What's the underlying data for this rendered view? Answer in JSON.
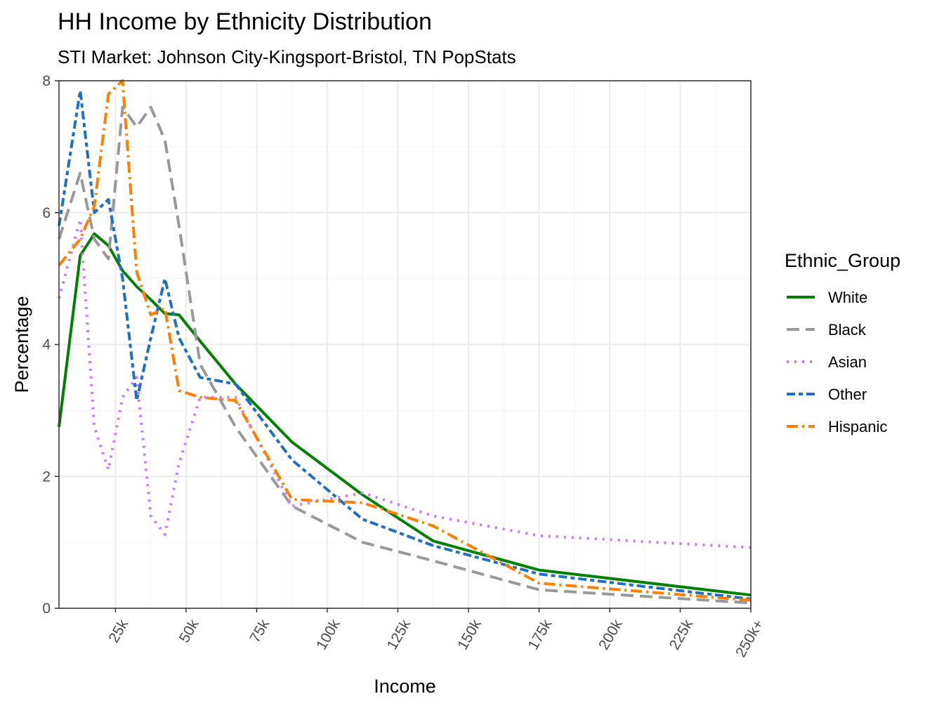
{
  "chart_data": {
    "type": "line",
    "title": "HH Income by Ethnicity Distribution",
    "subtitle": "STI Market: Johnson City-Kingsport-Bristol, TN PopStats",
    "xlabel": "Income",
    "ylabel": "Percentage",
    "x_tick_labels": [
      "25k",
      "50k",
      "75k",
      "100k",
      "125k",
      "150k",
      "175k",
      "200k",
      "225k",
      "250k+"
    ],
    "x_tick_values": [
      25,
      50,
      75,
      100,
      125,
      150,
      175,
      200,
      225,
      250
    ],
    "y_tick_labels": [
      "0",
      "2",
      "4",
      "6",
      "8"
    ],
    "y_tick_values": [
      0,
      2,
      4,
      6,
      8
    ],
    "xlim": [
      5,
      250
    ],
    "ylim": [
      0,
      8
    ],
    "grid": true,
    "legend_title": "Ethnic_Group",
    "legend_position": "right",
    "x": [
      5,
      12.5,
      17.5,
      22.5,
      27.5,
      32.5,
      37.5,
      42.5,
      47.5,
      55,
      67.5,
      87.5,
      112.5,
      137.5,
      175,
      250
    ],
    "series": [
      {
        "name": "White",
        "color": "#008000",
        "dash": "",
        "values": [
          2.75,
          5.35,
          5.68,
          5.5,
          5.12,
          4.88,
          4.68,
          4.47,
          4.45,
          4.05,
          3.4,
          2.52,
          1.72,
          1.02,
          0.58,
          0.2
        ]
      },
      {
        "name": "Black",
        "color": "#999999",
        "dash": "18 9",
        "values": [
          5.6,
          6.6,
          5.6,
          5.3,
          7.6,
          7.3,
          7.6,
          7.1,
          5.8,
          3.7,
          2.75,
          1.55,
          1.0,
          0.72,
          0.28,
          0.08
        ]
      },
      {
        "name": "Asian",
        "color": "#cc79ff",
        "dash": "3 8",
        "values": [
          4.7,
          5.9,
          2.75,
          2.1,
          3.2,
          3.5,
          1.4,
          1.12,
          2.2,
          3.2,
          3.2,
          1.55,
          1.75,
          1.4,
          1.1,
          0.92
        ]
      },
      {
        "name": "Other",
        "color": "#1f6fc5",
        "dash": "12 5 6 5",
        "values": [
          5.8,
          7.85,
          6.0,
          6.2,
          5.0,
          3.15,
          4.1,
          5.0,
          4.1,
          3.5,
          3.4,
          2.25,
          1.35,
          0.95,
          0.52,
          0.14
        ]
      },
      {
        "name": "Hispanic",
        "color": "#ff8000",
        "dash": "16 6 3 6",
        "values": [
          5.2,
          5.6,
          6.1,
          7.8,
          8.0,
          5.1,
          4.45,
          4.55,
          3.3,
          3.2,
          3.15,
          1.65,
          1.6,
          1.25,
          0.38,
          0.12
        ]
      }
    ]
  }
}
